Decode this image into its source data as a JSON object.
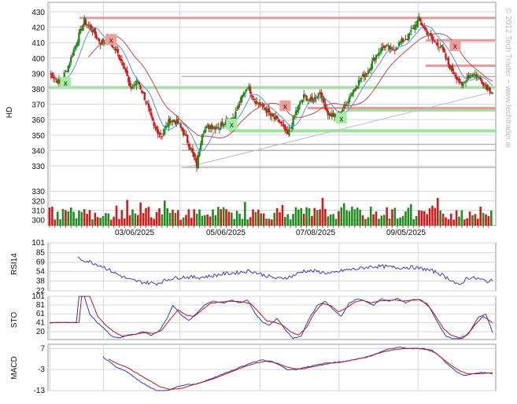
{
  "watermark": "© 2012 Tech Trader ~ www.techtrader.ai",
  "colors": {
    "up": "#1e8c1e",
    "down": "#d21a1a",
    "ma_fast": "#5b8fd6",
    "ma_slow": "#b84a4a",
    "rsi": "#3f3fb0",
    "sto_k": "#2a3fb5",
    "sto_d": "#b01c1c",
    "macd": "#2a3fb5",
    "signal": "#b01c1c",
    "resistance": "#e39a9a",
    "support": "#9fe29f",
    "neutral": "#b4b4b4",
    "grid": "#d6d6d6"
  },
  "chart_data": [
    {
      "type": "candlestick",
      "ylabel": "HD",
      "ylim": [
        325,
        432
      ],
      "yticks": [
        330,
        340,
        350,
        360,
        370,
        380,
        390,
        400,
        410,
        420,
        430
      ],
      "x_tick_labels": [
        "03/06/2025",
        "05/06/2025",
        "07/08/2025",
        "09/05/2025"
      ],
      "ma_legend": [],
      "key_price_path": [
        [
          0,
          390
        ],
        [
          8,
          384
        ],
        [
          14,
          395
        ],
        [
          20,
          410
        ],
        [
          26,
          424
        ],
        [
          32,
          418
        ],
        [
          38,
          410
        ],
        [
          44,
          412
        ],
        [
          50,
          404
        ],
        [
          56,
          395
        ],
        [
          60,
          380
        ],
        [
          66,
          385
        ],
        [
          72,
          372
        ],
        [
          78,
          355
        ],
        [
          84,
          350
        ],
        [
          90,
          360
        ],
        [
          96,
          358
        ],
        [
          102,
          348
        ],
        [
          106,
          340
        ],
        [
          110,
          330
        ],
        [
          114,
          352
        ],
        [
          120,
          356
        ],
        [
          126,
          355
        ],
        [
          132,
          360
        ],
        [
          138,
          362
        ],
        [
          144,
          375
        ],
        [
          148,
          382
        ],
        [
          154,
          372
        ],
        [
          160,
          368
        ],
        [
          166,
          362
        ],
        [
          172,
          358
        ],
        [
          178,
          350
        ],
        [
          184,
          365
        ],
        [
          190,
          375
        ],
        [
          196,
          372
        ],
        [
          202,
          378
        ],
        [
          208,
          364
        ],
        [
          214,
          362
        ],
        [
          220,
          368
        ],
        [
          226,
          378
        ],
        [
          232,
          386
        ],
        [
          238,
          392
        ],
        [
          244,
          402
        ],
        [
          250,
          408
        ],
        [
          256,
          405
        ],
        [
          262,
          410
        ],
        [
          268,
          414
        ],
        [
          272,
          420
        ],
        [
          276,
          425
        ],
        [
          280,
          419
        ],
        [
          286,
          412
        ],
        [
          292,
          408
        ],
        [
          298,
          396
        ],
        [
          304,
          388
        ],
        [
          308,
          381
        ],
        [
          312,
          388
        ],
        [
          316,
          390
        ],
        [
          320,
          388
        ],
        [
          326,
          382
        ],
        [
          331,
          378
        ]
      ],
      "resistance_levels": [
        426,
        411.5,
        395,
        367.5
      ],
      "support_levels": [
        381,
        366,
        353,
        352.5
      ],
      "neutral_levels": [
        388,
        344,
        340,
        329
      ],
      "trendline": {
        "from": [
          102,
          329
        ],
        "to": [
          331,
          378
        ]
      },
      "signals": [
        {
          "text": "x",
          "kind": "buy",
          "x": 12,
          "price": 384
        },
        {
          "text": "x",
          "kind": "sell",
          "x": 46,
          "price": 412
        },
        {
          "text": "x",
          "kind": "buy",
          "x": 136,
          "price": 357
        },
        {
          "text": "x",
          "kind": "sell",
          "x": 176,
          "price": 369
        },
        {
          "text": "x",
          "kind": "buy",
          "x": 218,
          "price": 361
        },
        {
          "text": "x",
          "kind": "sell",
          "x": 303,
          "price": 408
        }
      ],
      "volume": {
        "min": 300,
        "max": 330,
        "yticks": [
          300,
          310,
          320,
          330
        ]
      }
    },
    {
      "type": "line",
      "ylabel": "RSI14",
      "ylim": [
        22,
        101
      ],
      "yticks": [
        22,
        38,
        54,
        69,
        85,
        101
      ],
      "key_path": [
        [
          0,
          null
        ],
        [
          20,
          101
        ],
        [
          21,
          75
        ],
        [
          30,
          70
        ],
        [
          40,
          62
        ],
        [
          50,
          50
        ],
        [
          60,
          40
        ],
        [
          70,
          36
        ],
        [
          80,
          34
        ],
        [
          90,
          42
        ],
        [
          100,
          45
        ],
        [
          110,
          44
        ],
        [
          120,
          46
        ],
        [
          130,
          50
        ],
        [
          140,
          52
        ],
        [
          150,
          55
        ],
        [
          160,
          48
        ],
        [
          170,
          42
        ],
        [
          180,
          45
        ],
        [
          190,
          55
        ],
        [
          200,
          54
        ],
        [
          210,
          50
        ],
        [
          220,
          56
        ],
        [
          230,
          58
        ],
        [
          240,
          62
        ],
        [
          250,
          62
        ],
        [
          260,
          60
        ],
        [
          270,
          61
        ],
        [
          280,
          58
        ],
        [
          290,
          52
        ],
        [
          300,
          40
        ],
        [
          306,
          30
        ],
        [
          312,
          44
        ],
        [
          320,
          42
        ],
        [
          326,
          38
        ],
        [
          331,
          38
        ]
      ]
    },
    {
      "type": "line",
      "ylabel": "STO",
      "ylim": [
        2,
        101
      ],
      "yticks": [
        20,
        41,
        61,
        81,
        101
      ],
      "series_k": [
        [
          0,
          41
        ],
        [
          20,
          41
        ],
        [
          22,
          101
        ],
        [
          26,
          101
        ],
        [
          30,
          60
        ],
        [
          36,
          40
        ],
        [
          40,
          30
        ],
        [
          46,
          10
        ],
        [
          52,
          5
        ],
        [
          58,
          12
        ],
        [
          64,
          14
        ],
        [
          70,
          20
        ],
        [
          76,
          12
        ],
        [
          82,
          22
        ],
        [
          88,
          52
        ],
        [
          92,
          80
        ],
        [
          98,
          60
        ],
        [
          104,
          45
        ],
        [
          110,
          62
        ],
        [
          116,
          82
        ],
        [
          122,
          90
        ],
        [
          130,
          86
        ],
        [
          136,
          92
        ],
        [
          142,
          86
        ],
        [
          148,
          92
        ],
        [
          154,
          60
        ],
        [
          160,
          40
        ],
        [
          164,
          35
        ],
        [
          170,
          50
        ],
        [
          176,
          25
        ],
        [
          182,
          5
        ],
        [
          188,
          10
        ],
        [
          194,
          50
        ],
        [
          200,
          80
        ],
        [
          206,
          90
        ],
        [
          212,
          70
        ],
        [
          218,
          55
        ],
        [
          224,
          86
        ],
        [
          230,
          95
        ],
        [
          236,
          90
        ],
        [
          242,
          80
        ],
        [
          248,
          96
        ],
        [
          254,
          90
        ],
        [
          260,
          96
        ],
        [
          266,
          86
        ],
        [
          272,
          94
        ],
        [
          278,
          92
        ],
        [
          284,
          75
        ],
        [
          290,
          40
        ],
        [
          296,
          10
        ],
        [
          302,
          4
        ],
        [
          308,
          4
        ],
        [
          314,
          20
        ],
        [
          320,
          52
        ],
        [
          326,
          60
        ],
        [
          331,
          18
        ]
      ],
      "series_d": [
        [
          0,
          41
        ],
        [
          22,
          41
        ],
        [
          24,
          101
        ],
        [
          30,
          101
        ],
        [
          36,
          55
        ],
        [
          42,
          35
        ],
        [
          48,
          20
        ],
        [
          54,
          10
        ],
        [
          60,
          12
        ],
        [
          66,
          15
        ],
        [
          72,
          18
        ],
        [
          78,
          16
        ],
        [
          84,
          24
        ],
        [
          90,
          48
        ],
        [
          96,
          70
        ],
        [
          102,
          58
        ],
        [
          108,
          55
        ],
        [
          114,
          70
        ],
        [
          120,
          85
        ],
        [
          128,
          88
        ],
        [
          136,
          90
        ],
        [
          144,
          88
        ],
        [
          150,
          85
        ],
        [
          156,
          66
        ],
        [
          162,
          45
        ],
        [
          168,
          42
        ],
        [
          174,
          35
        ],
        [
          180,
          20
        ],
        [
          186,
          12
        ],
        [
          192,
          30
        ],
        [
          198,
          64
        ],
        [
          204,
          85
        ],
        [
          210,
          80
        ],
        [
          216,
          65
        ],
        [
          222,
          75
        ],
        [
          228,
          88
        ],
        [
          234,
          92
        ],
        [
          240,
          86
        ],
        [
          246,
          90
        ],
        [
          252,
          92
        ],
        [
          258,
          93
        ],
        [
          264,
          90
        ],
        [
          270,
          92
        ],
        [
          276,
          93
        ],
        [
          282,
          84
        ],
        [
          288,
          58
        ],
        [
          294,
          28
        ],
        [
          300,
          12
        ],
        [
          306,
          6
        ],
        [
          312,
          12
        ],
        [
          318,
          36
        ],
        [
          324,
          55
        ],
        [
          331,
          40
        ]
      ]
    },
    {
      "type": "line",
      "ylabel": "MACD",
      "ylim": [
        -13,
        9
      ],
      "yticks": [
        -13,
        -3,
        7
      ],
      "macd": [
        [
          40,
          3
        ],
        [
          44,
          1
        ],
        [
          50,
          -2
        ],
        [
          58,
          -4
        ],
        [
          66,
          -8
        ],
        [
          74,
          -11
        ],
        [
          80,
          -13
        ],
        [
          88,
          -13
        ],
        [
          96,
          -11
        ],
        [
          104,
          -10
        ],
        [
          110,
          -10
        ],
        [
          118,
          -8
        ],
        [
          126,
          -6
        ],
        [
          134,
          -4
        ],
        [
          142,
          -2
        ],
        [
          150,
          0
        ],
        [
          158,
          1.5
        ],
        [
          166,
          1
        ],
        [
          172,
          -1
        ],
        [
          178,
          -3
        ],
        [
          184,
          -3
        ],
        [
          190,
          -2
        ],
        [
          198,
          -1
        ],
        [
          206,
          0
        ],
        [
          214,
          0.5
        ],
        [
          222,
          1
        ],
        [
          230,
          2
        ],
        [
          238,
          3
        ],
        [
          246,
          5
        ],
        [
          254,
          7
        ],
        [
          262,
          7.5
        ],
        [
          270,
          7
        ],
        [
          278,
          7.2
        ],
        [
          286,
          6
        ],
        [
          292,
          3
        ],
        [
          298,
          -1
        ],
        [
          304,
          -4
        ],
        [
          310,
          -6
        ],
        [
          316,
          -5
        ],
        [
          322,
          -4.5
        ],
        [
          328,
          -4.5
        ],
        [
          331,
          -5
        ]
      ],
      "signal": [
        [
          44,
          2
        ],
        [
          50,
          0
        ],
        [
          58,
          -2
        ],
        [
          66,
          -5
        ],
        [
          74,
          -8
        ],
        [
          82,
          -11
        ],
        [
          90,
          -12.5
        ],
        [
          98,
          -12
        ],
        [
          106,
          -10.5
        ],
        [
          114,
          -9
        ],
        [
          122,
          -7.5
        ],
        [
          130,
          -5.5
        ],
        [
          138,
          -3.5
        ],
        [
          146,
          -1.5
        ],
        [
          154,
          0
        ],
        [
          162,
          1
        ],
        [
          170,
          0
        ],
        [
          176,
          -1.5
        ],
        [
          182,
          -2.5
        ],
        [
          188,
          -2.8
        ],
        [
          194,
          -2
        ],
        [
          202,
          -1
        ],
        [
          210,
          0
        ],
        [
          218,
          0.5
        ],
        [
          226,
          1.5
        ],
        [
          234,
          2.5
        ],
        [
          242,
          4
        ],
        [
          250,
          5.5
        ],
        [
          258,
          6.5
        ],
        [
          266,
          7
        ],
        [
          274,
          7
        ],
        [
          282,
          6.5
        ],
        [
          288,
          5
        ],
        [
          294,
          2
        ],
        [
          300,
          -1
        ],
        [
          306,
          -3.5
        ],
        [
          312,
          -5
        ],
        [
          318,
          -5
        ],
        [
          324,
          -4.8
        ],
        [
          331,
          -4.6
        ]
      ]
    }
  ]
}
